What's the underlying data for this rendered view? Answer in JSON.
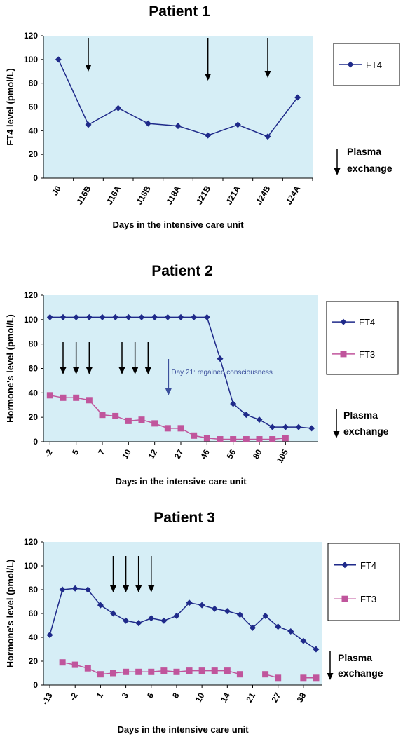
{
  "colors": {
    "plot_bg": "#d6eef6",
    "ft4": "#1f2a8a",
    "ft3": "#c0559c",
    "arrow": "#000000",
    "annotation": "#3b4f9c"
  },
  "chart_data": [
    {
      "type": "line",
      "title": "Patient 1",
      "xlabel": "Days in the intensive care unit",
      "ylabel": "FT4 level (pmol/L)",
      "ylim": [
        0,
        120
      ],
      "yticks": [
        "0",
        "20",
        "40",
        "60",
        "80",
        "100",
        "120"
      ],
      "categories": [
        "J0",
        "J16B",
        "J16A",
        "J18B",
        "J18A",
        "J21B",
        "J21A",
        "J24B",
        "J24A"
      ],
      "series": [
        {
          "name": "FT4",
          "values": [
            100,
            45,
            59,
            46,
            44,
            36,
            45,
            35,
            68
          ]
        }
      ],
      "plasma_exchange_arrows_at": [
        1,
        5,
        7
      ],
      "legend_position": "right",
      "plasma_label": [
        "Plasma",
        "exchange"
      ]
    },
    {
      "type": "line",
      "title": "Patient 2",
      "xlabel": "Days in the intensive care unit",
      "ylabel": "Hormone's level (pmol/L)",
      "ylim": [
        0,
        120
      ],
      "yticks": [
        "0",
        "20",
        "40",
        "60",
        "80",
        "100",
        "120"
      ],
      "x_tick_labels": [
        "-2",
        "5",
        "7",
        "10",
        "12",
        "27",
        "46",
        "56",
        "80",
        "105"
      ],
      "series": [
        {
          "name": "FT4",
          "values": [
            102,
            102,
            102,
            102,
            102,
            102,
            102,
            102,
            102,
            102,
            102,
            102,
            102,
            68,
            31,
            22,
            18,
            12,
            12,
            12,
            11
          ]
        },
        {
          "name": "FT3",
          "values": [
            38,
            36,
            36,
            34,
            22,
            21,
            17,
            18,
            15,
            11,
            11,
            5,
            3,
            2,
            2,
            2,
            2,
            2,
            3
          ]
        }
      ],
      "plasma_exchange_arrows_at": [
        1,
        2,
        3,
        5.5,
        6.5,
        7.5
      ],
      "annotation": "Day 21: regained consciousness",
      "legend_position": "right",
      "plasma_label": [
        "Plasma",
        "exchange"
      ]
    },
    {
      "type": "line",
      "title": "Patient 3",
      "xlabel": "Days  in the intensive care unit",
      "ylabel": "Hormone's level (pmol/L)",
      "ylim": [
        0,
        120
      ],
      "yticks": [
        "0",
        "20",
        "40",
        "60",
        "80",
        "100",
        "120"
      ],
      "x_tick_labels": [
        "-13",
        "-2",
        "1",
        "3",
        "6",
        "8",
        "10",
        "14",
        "21",
        "27",
        "38"
      ],
      "series": [
        {
          "name": "FT4",
          "values": [
            42,
            80,
            81,
            80,
            67,
            60,
            54,
            52,
            56,
            54,
            58,
            69,
            67,
            64,
            62,
            59,
            48,
            58,
            49,
            45,
            37,
            30
          ]
        },
        {
          "name": "FT3",
          "values": [
            null,
            19,
            17,
            14,
            9,
            10,
            11,
            11,
            11,
            12,
            11,
            12,
            12,
            12,
            12,
            9,
            null,
            9,
            6,
            null,
            6,
            6
          ]
        }
      ],
      "plasma_exchange_arrows_at": [
        5,
        6,
        7,
        8
      ],
      "legend_position": "right",
      "plasma_label": [
        "Plasma",
        "exchange"
      ]
    }
  ]
}
